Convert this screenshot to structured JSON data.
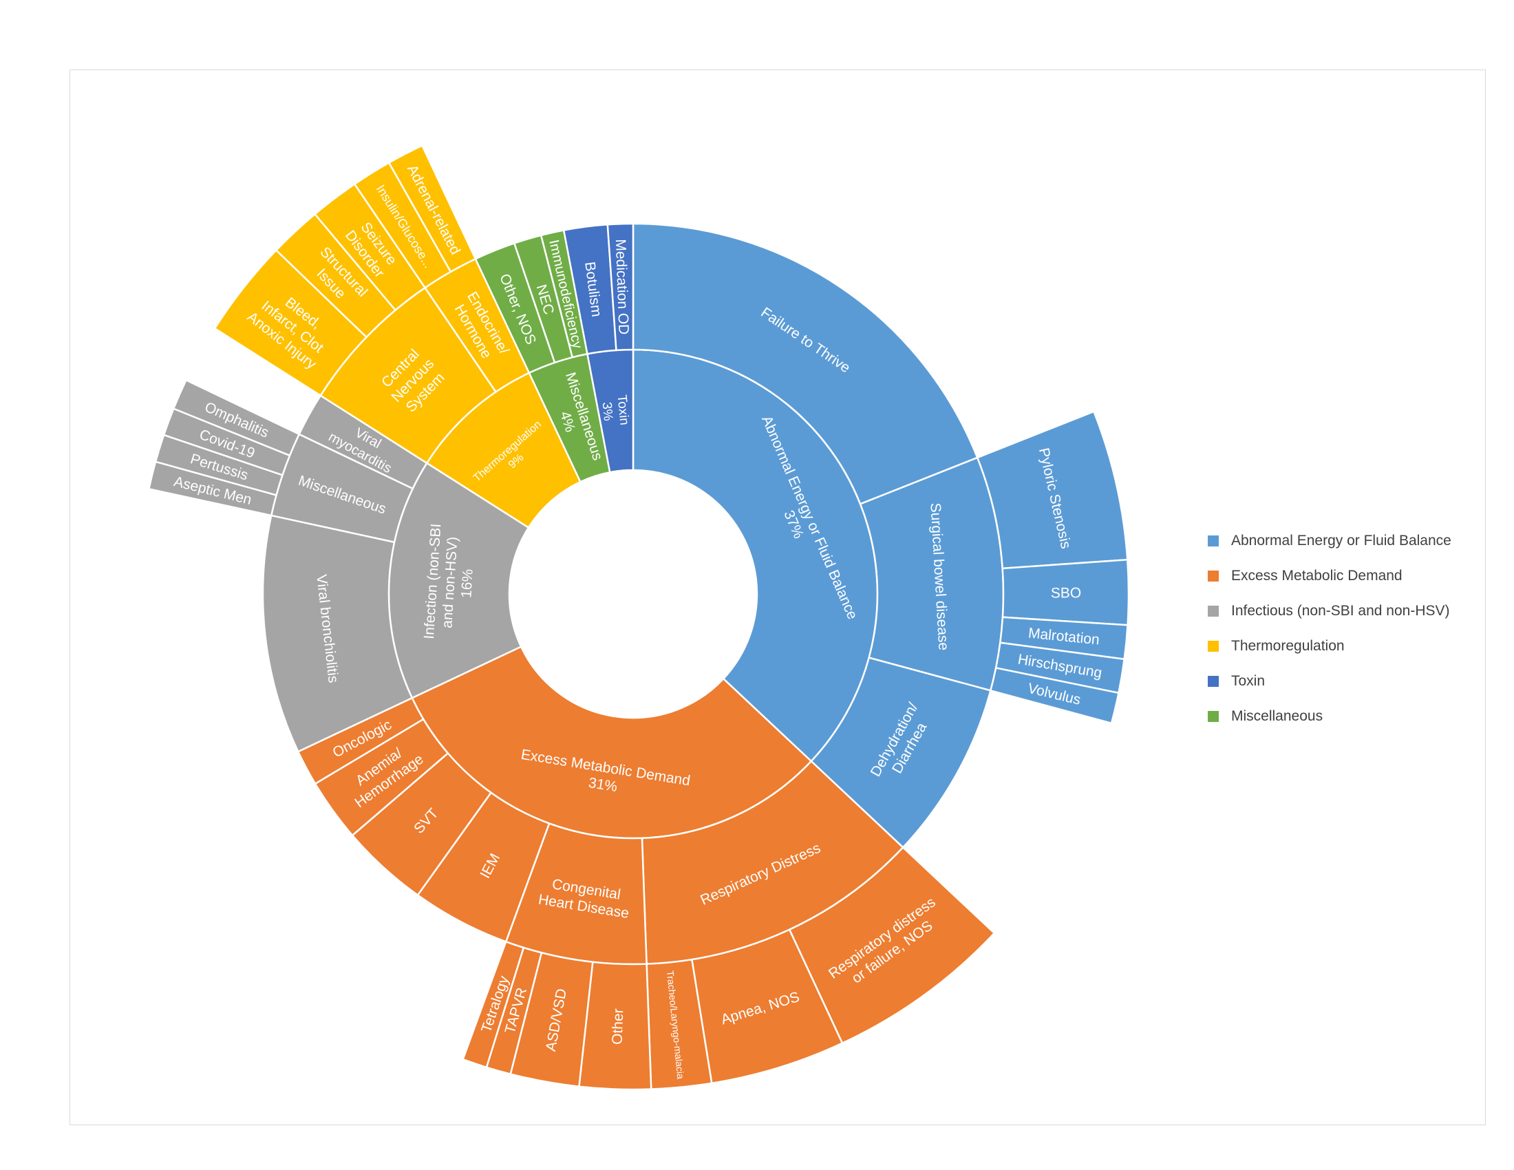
{
  "chart_data": {
    "type": "sunburst",
    "title": "",
    "legend_position": "right",
    "categories": [
      {
        "name": "Abnormal Energy or Fluid Balance",
        "label": "Abnormal Energy or Fluid Balance",
        "pct": "37%",
        "color": "#5b9bd5",
        "value": 37,
        "children": [
          {
            "name": "Failure to Thrive",
            "value": 19
          },
          {
            "name": "Surgical bowel disease",
            "value": 10.2,
            "children": [
              {
                "name": "Pyloric Stenosis",
                "value": 4.9
              },
              {
                "name": "SBO",
                "value": 2.1
              },
              {
                "name": "Malrotation",
                "value": 1.1
              },
              {
                "name": "Hirschsprung",
                "value": 1.1
              },
              {
                "name": "Volvulus",
                "value": 1.0
              }
            ]
          },
          {
            "name": "Dehydration/ Diarrhea",
            "value": 7.8
          }
        ]
      },
      {
        "name": "Excess Metabolic Demand",
        "label": "Excess Metabolic Demand",
        "pct": "31%",
        "color": "#ed7d31",
        "value": 31,
        "children": [
          {
            "name": "Respiratory Distress",
            "value": 12.7,
            "children": [
              {
                "name": "Respiratory distress or failure, NOS",
                "value": 6.2
              },
              {
                "name": "Apnea, NOS",
                "value": 4.5
              },
              {
                "name": "Tracheo/Laryngo-malacia",
                "value": 2.0
              }
            ]
          },
          {
            "name": "Congenital Heart Disease",
            "value": 6.3,
            "children": [
              {
                "name": "Other",
                "value": 2.9
              },
              {
                "name": "ASD/VSD",
                "value": 2.8
              },
              {
                "name": "TAPVR",
                "value": 1.0
              },
              {
                "name": "Tetralogy",
                "value": 1.0
              }
            ]
          },
          {
            "name": "IEM",
            "value": 4.4
          },
          {
            "name": "SVT",
            "value": 3.9
          },
          {
            "name": "Anemia/ Hemorrhage",
            "value": 2.8
          },
          {
            "name": "Oncologic",
            "value": 1.6
          }
        ]
      },
      {
        "name": "Infectious (non-SBI and non-HSV)",
        "label": "Infection (non-SBI and non-HSV)",
        "pct": "16%",
        "color": "#a5a5a5",
        "value": 16,
        "children": [
          {
            "name": "Viral bronchiolitis",
            "value": 10.4
          },
          {
            "name": "Miscellaneous",
            "value": 3.7,
            "children": [
              {
                "name": "Aseptic Men",
                "value": 0.9
              },
              {
                "name": "Pertussis",
                "value": 0.9
              },
              {
                "name": "Covid-19",
                "value": 0.9
              },
              {
                "name": "Omphalitis",
                "value": 1.0
              }
            ]
          },
          {
            "name": "Viral myocarditis",
            "value": 1.9
          }
        ]
      },
      {
        "name": "Thermoregulation",
        "label": "Thermoregulation",
        "pct": "9%",
        "color": "#ffc000",
        "value": 9,
        "children": [
          {
            "name": "Central Nervous System",
            "value": 6.5,
            "children": [
              {
                "name": "Bleed, Infarct, Clot Anoxic Injury",
                "value": 3.2
              },
              {
                "name": "Structural Issue",
                "value": 1.7
              },
              {
                "name": "Seizure Disorder",
                "value": 1.6
              }
            ]
          },
          {
            "name": "Endocrine/ Hormone",
            "value": 2.5,
            "children": [
              {
                "name": "Insulin/Glucose...",
                "value": 1.3
              },
              {
                "name": "Adrenal-related",
                "value": 1.2
              }
            ]
          }
        ]
      },
      {
        "name": "Miscellaneous",
        "label": "Miscellaneous",
        "pct": "4%",
        "color": "#70ad47",
        "value": 4,
        "children": [
          {
            "name": "Other, NOS",
            "value": 1.8
          },
          {
            "name": "NEC",
            "value": 1.2
          },
          {
            "name": "Immunodeficiency",
            "value": 1.0
          }
        ]
      },
      {
        "name": "Toxin",
        "label": "Toxin",
        "pct": "3%",
        "color": "#4472c4",
        "value": 3,
        "children": [
          {
            "name": "Botulism",
            "value": 1.9
          },
          {
            "name": "Medication OD",
            "value": 1.1
          }
        ]
      }
    ],
    "legend": [
      {
        "label": "Abnormal Energy or Fluid Balance",
        "color": "#5b9bd5"
      },
      {
        "label": "Excess Metabolic Demand",
        "color": "#ed7d31"
      },
      {
        "label": "Infectious (non-SBI and non-HSV)",
        "color": "#a5a5a5"
      },
      {
        "label": "Thermoregulation",
        "color": "#ffc000"
      },
      {
        "label": "Toxin",
        "color": "#4472c4"
      },
      {
        "label": "Miscellaneous",
        "color": "#70ad47"
      }
    ]
  }
}
